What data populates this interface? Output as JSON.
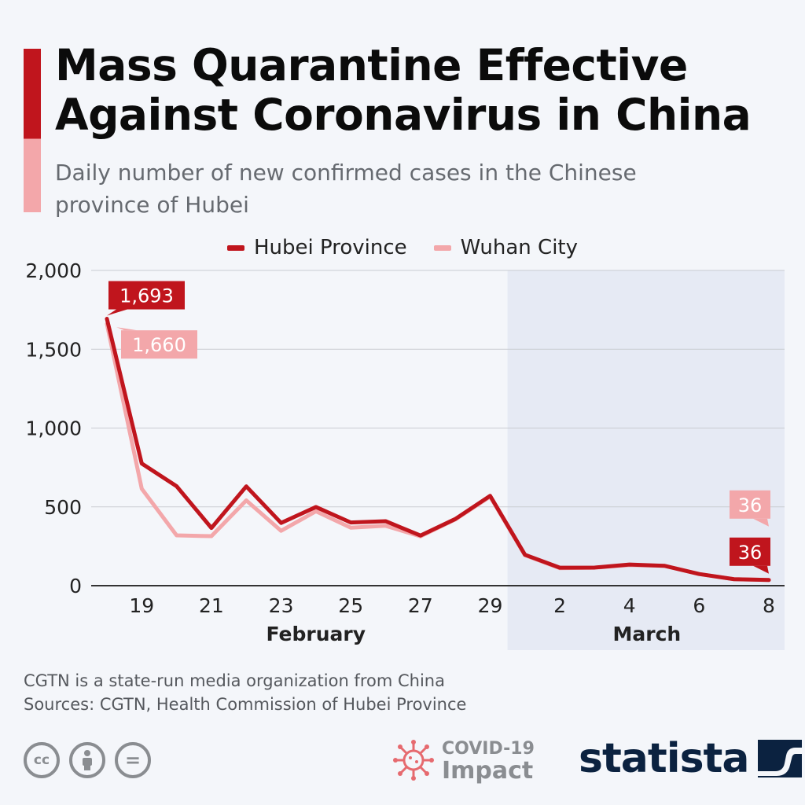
{
  "header": {
    "title": "Mass Quarantine Effective Against Coronavirus in China",
    "subtitle": "Daily number of new confirmed cases in the Chinese province of Hubei"
  },
  "colors": {
    "accent": "#c0151d",
    "accent_light": "#f3a7aa",
    "shaded_region": "#e6eaf4",
    "brand": "#0b2240"
  },
  "chart_data": {
    "type": "line",
    "x": [
      "Feb 18",
      "Feb 19",
      "Feb 20",
      "Feb 21",
      "Feb 22",
      "Feb 23",
      "Feb 24",
      "Feb 25",
      "Feb 26",
      "Feb 27",
      "Feb 28",
      "Feb 29",
      "Mar 1",
      "Mar 2",
      "Mar 3",
      "Mar 4",
      "Mar 5",
      "Mar 6",
      "Mar 7",
      "Mar 8"
    ],
    "x_tick_labels": [
      "19",
      "21",
      "23",
      "25",
      "27",
      "29",
      "2",
      "4",
      "6",
      "8"
    ],
    "x_tick_at": [
      "Feb 19",
      "Feb 21",
      "Feb 23",
      "Feb 25",
      "Feb 27",
      "Feb 29",
      "Mar 2",
      "Mar 4",
      "Mar 6",
      "Mar 8"
    ],
    "x_groups": [
      {
        "label": "February",
        "from": "Feb 18",
        "to": "Feb 29"
      },
      {
        "label": "March",
        "from": "Mar 1",
        "to": "Mar 8",
        "shaded": true
      }
    ],
    "series": [
      {
        "name": "Hubei Province",
        "color": "#c0151d",
        "values": [
          1693,
          775,
          631,
          366,
          630,
          398,
          499,
          401,
          409,
          318,
          423,
          570,
          196,
          114,
          115,
          134,
          126,
          74,
          41,
          36
        ],
        "labels": [
          {
            "x": "Feb 18",
            "text": "1,693"
          },
          {
            "x": "Mar 8",
            "text": "36"
          }
        ]
      },
      {
        "name": "Wuhan City",
        "color": "#f3a7aa",
        "values": [
          1660,
          615,
          319,
          314,
          541,
          348,
          472,
          368,
          380,
          313,
          420,
          565,
          193,
          111,
          114,
          131,
          126,
          74,
          41,
          36
        ],
        "labels": [
          {
            "x": "Feb 18",
            "text": "1,660"
          },
          {
            "x": "Mar 8",
            "text": "36"
          }
        ]
      }
    ],
    "y_ticks": [
      "0",
      "500",
      "1,000",
      "1,500",
      "2,000"
    ],
    "ylim": [
      0,
      2000
    ],
    "grid": true,
    "legend": "top-center"
  },
  "footer": {
    "note": "CGTN  is a state-run media organization from China",
    "sources": "Sources: CGTN, Health Commission of Hubei Province",
    "covid_label": "COVID-19",
    "covid_sub": "Impact",
    "brand": "statista",
    "cc_icons": [
      "cc-icon",
      "attribution-icon",
      "no-derivatives-icon"
    ],
    "cc_text": [
      "cc",
      "="
    ]
  }
}
